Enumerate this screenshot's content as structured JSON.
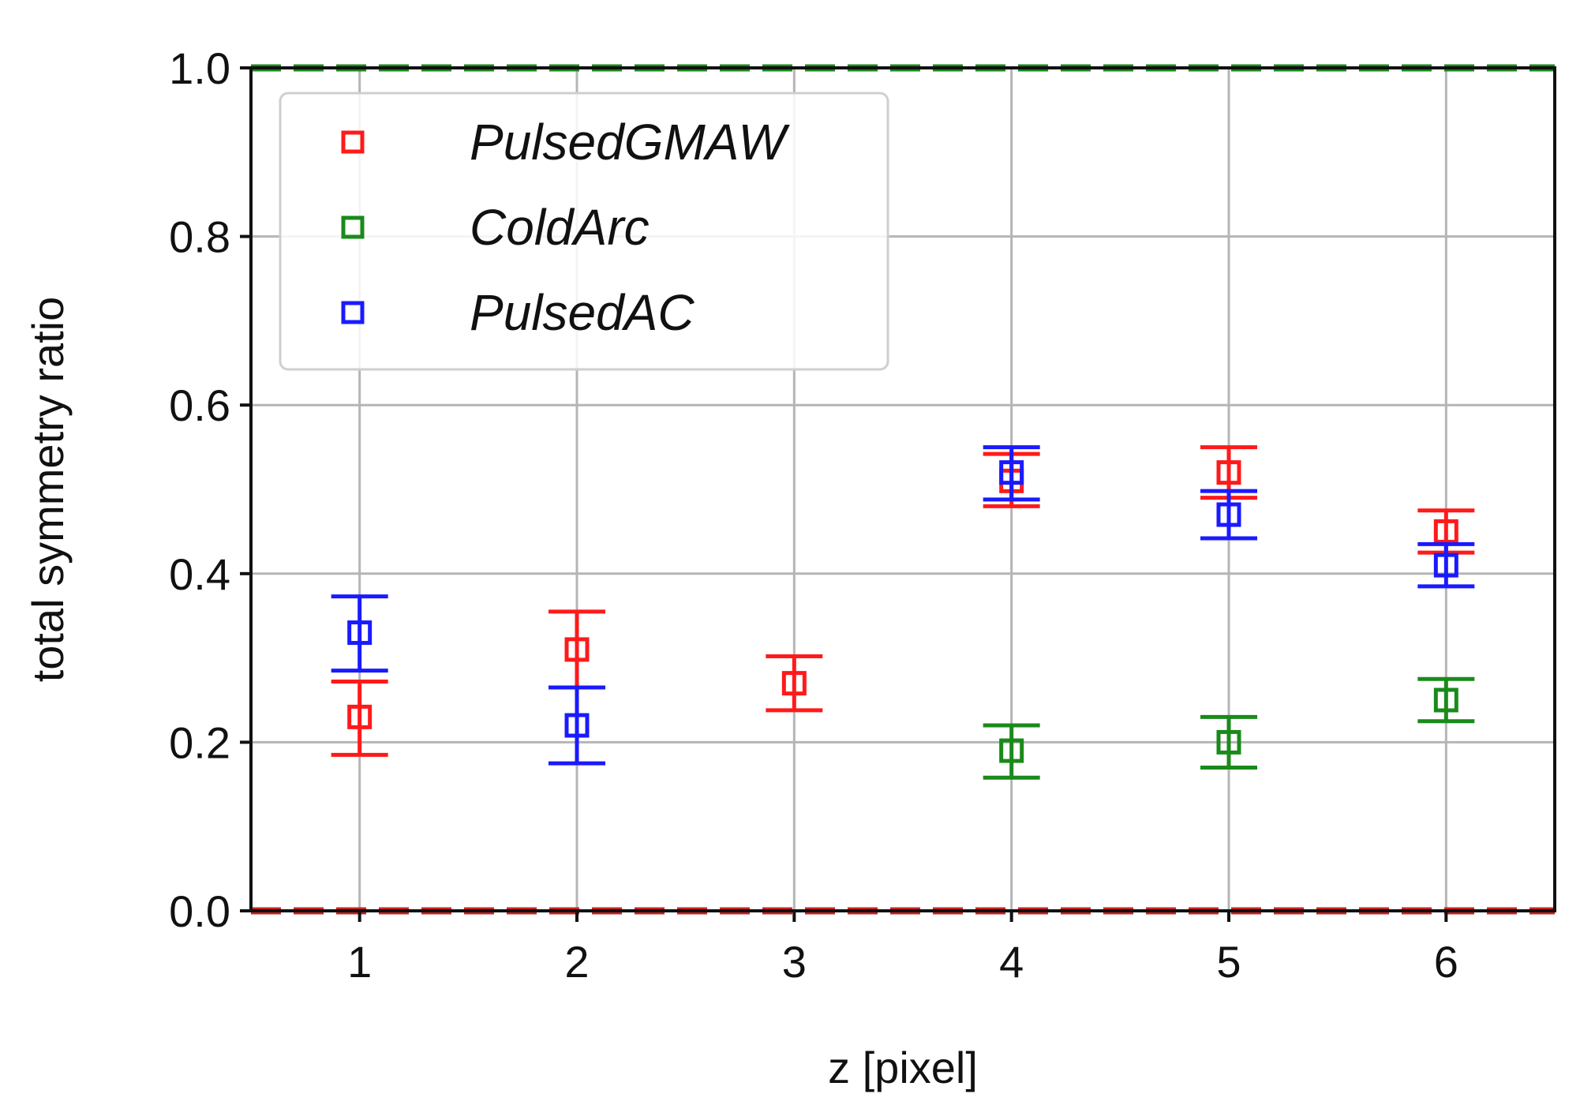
{
  "chart_data": {
    "type": "scatter",
    "title": "",
    "xlabel": "z [pixel]",
    "ylabel": "total symmetry ratio",
    "xlim": [
      0.5,
      6.5
    ],
    "ylim": [
      0.0,
      1.0
    ],
    "xticks": [
      1,
      2,
      3,
      4,
      5,
      6
    ],
    "yticks": [
      0.0,
      0.2,
      0.4,
      0.6,
      0.8,
      1.0
    ],
    "xtick_labels": [
      "1",
      "2",
      "3",
      "4",
      "5",
      "6"
    ],
    "ytick_labels": [
      "0.0",
      "0.2",
      "0.4",
      "0.6",
      "0.8",
      "1.0"
    ],
    "grid": true,
    "legend_position": "top-left",
    "marker": "hollow-square",
    "reference_lines": [
      {
        "y": 1.0,
        "style": "dashed",
        "color": "#1a8a1a"
      },
      {
        "y": 0.0,
        "style": "dashed",
        "color": "#cc2222"
      }
    ],
    "series": [
      {
        "name": "PulsedGMAW",
        "color": "#ff1a1a",
        "points": [
          {
            "x": 1,
            "y": 0.23,
            "lo": 0.185,
            "hi": 0.272
          },
          {
            "x": 2,
            "y": 0.31,
            "lo": 0.265,
            "hi": 0.355
          },
          {
            "x": 3,
            "y": 0.27,
            "lo": 0.238,
            "hi": 0.302
          },
          {
            "x": 4,
            "y": 0.51,
            "lo": 0.48,
            "hi": 0.542
          },
          {
            "x": 5,
            "y": 0.52,
            "lo": 0.49,
            "hi": 0.55
          },
          {
            "x": 6,
            "y": 0.45,
            "lo": 0.425,
            "hi": 0.475
          }
        ]
      },
      {
        "name": "ColdArc",
        "color": "#1a8a1a",
        "points": [
          {
            "x": 4,
            "y": 0.19,
            "lo": 0.158,
            "hi": 0.22
          },
          {
            "x": 5,
            "y": 0.2,
            "lo": 0.17,
            "hi": 0.23
          },
          {
            "x": 6,
            "y": 0.25,
            "lo": 0.225,
            "hi": 0.275
          }
        ]
      },
      {
        "name": "PulsedAC",
        "color": "#1a1aff",
        "points": [
          {
            "x": 1,
            "y": 0.33,
            "lo": 0.285,
            "hi": 0.373
          },
          {
            "x": 2,
            "y": 0.22,
            "lo": 0.175,
            "hi": 0.265
          },
          {
            "x": 4,
            "y": 0.52,
            "lo": 0.488,
            "hi": 0.55
          },
          {
            "x": 5,
            "y": 0.47,
            "lo": 0.442,
            "hi": 0.498
          },
          {
            "x": 6,
            "y": 0.41,
            "lo": 0.385,
            "hi": 0.435
          }
        ]
      }
    ]
  }
}
